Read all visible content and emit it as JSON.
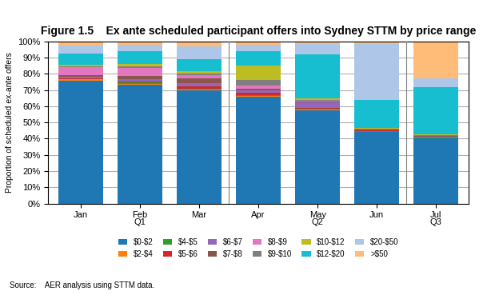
{
  "chart_data": {
    "type": "bar",
    "stacked": true,
    "title": "Figure 1.5    Ex ante scheduled participant offers into Sydney STTM by price range",
    "y_label": "Proportion of scheduled ex-ante offers",
    "source": "Source:    AER analysis using STTM data.",
    "categories": [
      "Jan",
      "Feb",
      "Mar",
      "Apr",
      "May",
      "Jun",
      "Jul"
    ],
    "series": [
      {
        "name": "$0-$2",
        "values": [
          75.5,
          73.0,
          70.0,
          66.0,
          57.5,
          44.0,
          40.0
        ]
      },
      {
        "name": "$2-$4",
        "values": [
          1.0,
          0.5,
          0.5,
          0.5,
          0.5,
          0.3,
          0.3
        ]
      },
      {
        "name": "$4-$5",
        "values": [
          0.3,
          1.0,
          0.5,
          0.5,
          0.5,
          0.3,
          0.3
        ]
      },
      {
        "name": "$5-$6",
        "values": [
          0.5,
          0.5,
          1.0,
          1.5,
          0.5,
          0.3,
          0.3
        ]
      },
      {
        "name": "$6-$7",
        "values": [
          1.0,
          1.5,
          2.0,
          1.5,
          3.5,
          0.3,
          0.3
        ]
      },
      {
        "name": "$7-$8",
        "values": [
          1.0,
          2.0,
          3.0,
          1.0,
          0.5,
          0.3,
          0.3
        ]
      },
      {
        "name": "$8-$9",
        "values": [
          5.0,
          5.0,
          2.0,
          1.5,
          0.5,
          0.3,
          0.3
        ]
      },
      {
        "name": "$9-$10",
        "values": [
          0.5,
          1.0,
          1.0,
          3.5,
          0.5,
          0.3,
          0.3
        ]
      },
      {
        "name": "$10-$12",
        "values": [
          0.5,
          1.5,
          1.5,
          9.0,
          1.0,
          0.3,
          0.8
        ]
      },
      {
        "name": "$12-$20",
        "values": [
          7.0,
          8.0,
          7.5,
          9.0,
          27.0,
          17.5,
          29.0
        ]
      },
      {
        "name": "$20-$50",
        "values": [
          5.0,
          4.0,
          8.0,
          4.0,
          6.5,
          34.5,
          5.5
        ]
      },
      {
        "name": ">$50",
        "values": [
          2.7,
          2.0,
          3.0,
          2.0,
          1.5,
          1.6,
          22.6
        ]
      }
    ],
    "ylim": [
      0,
      100
    ],
    "yticks": [
      {
        "value": 0,
        "label": "0%"
      },
      {
        "value": 10,
        "label": "10%"
      },
      {
        "value": 20,
        "label": "20%"
      },
      {
        "value": 30,
        "label": "30%"
      },
      {
        "value": 40,
        "label": "40%"
      },
      {
        "value": 50,
        "label": "50%"
      },
      {
        "value": 60,
        "label": "60%"
      },
      {
        "value": 70,
        "label": "70%"
      },
      {
        "value": 80,
        "label": "80%"
      },
      {
        "value": 90,
        "label": "90%"
      },
      {
        "value": 100,
        "label": "100%"
      }
    ],
    "grid": true,
    "legend": "upper center",
    "annotations": [
      {
        "text": "Q1",
        "categories": [
          "Jan",
          "Feb",
          "Mar"
        ]
      },
      {
        "text": "Q2",
        "categories": [
          "Apr",
          "May",
          "Jun"
        ]
      },
      {
        "text": "Q3",
        "categories": [
          "Jul"
        ]
      }
    ]
  }
}
